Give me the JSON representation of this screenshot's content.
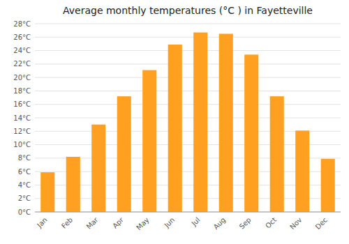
{
  "chart_data": {
    "type": "bar",
    "title": "Average monthly temperatures (°C ) in Fayetteville",
    "categories": [
      "Jan",
      "Feb",
      "Mar",
      "Apr",
      "May",
      "Jun",
      "Jul",
      "Aug",
      "Sep",
      "Oct",
      "Nov",
      "Dec"
    ],
    "values": [
      5.9,
      8.2,
      13.0,
      17.2,
      21.1,
      24.9,
      26.7,
      26.5,
      23.4,
      17.2,
      12.1,
      7.9
    ],
    "color": "#FFA020",
    "ylim": [
      0,
      28
    ],
    "yticks": [
      {
        "value": 0,
        "label": "0°C"
      },
      {
        "value": 2,
        "label": "2°C"
      },
      {
        "value": 4,
        "label": "4°C"
      },
      {
        "value": 6,
        "label": "6°C"
      },
      {
        "value": 8,
        "label": "8°C"
      },
      {
        "value": 10,
        "label": "10°C"
      },
      {
        "value": 12,
        "label": "12°C"
      },
      {
        "value": 14,
        "label": "14°C"
      },
      {
        "value": 16,
        "label": "16°C"
      },
      {
        "value": 18,
        "label": "18°C"
      },
      {
        "value": 20,
        "label": "20°C"
      },
      {
        "value": 22,
        "label": "22°C"
      },
      {
        "value": 24,
        "label": "24°C"
      },
      {
        "value": 26,
        "label": "26°C"
      },
      {
        "value": 28,
        "label": "28°C"
      }
    ],
    "grid": true
  }
}
